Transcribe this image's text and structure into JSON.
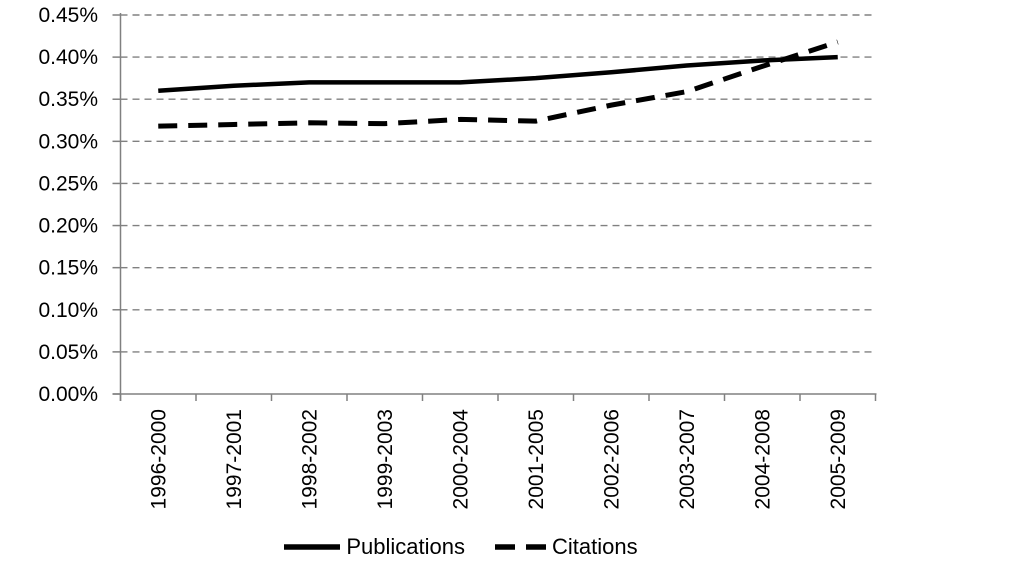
{
  "chart_data": {
    "type": "line",
    "title": "",
    "xlabel": "",
    "ylabel": "",
    "categories": [
      "1996-2000",
      "1997-2001",
      "1998-2002",
      "1999-2003",
      "2000-2004",
      "2001-2005",
      "2002-2006",
      "2003-2007",
      "2004-2008",
      "2005-2009"
    ],
    "series": [
      {
        "name": "Publications",
        "style": "solid",
        "values": [
          0.36,
          0.366,
          0.37,
          0.37,
          0.37,
          0.375,
          0.382,
          0.39,
          0.396,
          0.4
        ]
      },
      {
        "name": "Citations",
        "style": "dashed",
        "values": [
          0.318,
          0.32,
          0.322,
          0.321,
          0.326,
          0.324,
          0.343,
          0.359,
          0.389,
          0.418
        ]
      }
    ],
    "ylim": [
      0,
      0.45
    ],
    "ytick_step": 0.05,
    "ytick_labels": [
      "0.00%",
      "0.05%",
      "0.10%",
      "0.15%",
      "0.20%",
      "0.25%",
      "0.30%",
      "0.35%",
      "0.40%",
      "0.45%"
    ],
    "grid": "horizontal-dashed",
    "legend_position": "bottom"
  },
  "legend": {
    "publications_label": "Publications",
    "citations_label": "Citations"
  },
  "colors": {
    "line": "#000000",
    "grid": "#808080",
    "axis": "#808080",
    "text": "#000000",
    "background": "#ffffff"
  }
}
